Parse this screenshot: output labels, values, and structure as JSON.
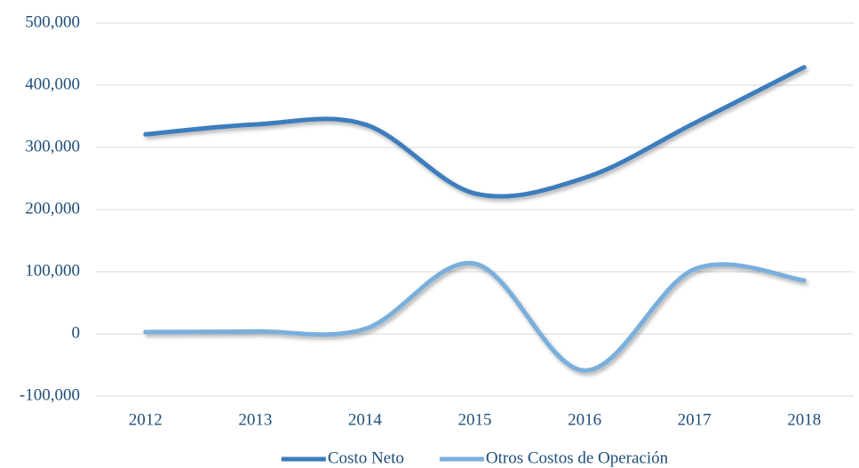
{
  "chart_data": {
    "type": "line",
    "categories": [
      "2012",
      "2013",
      "2014",
      "2015",
      "2016",
      "2017",
      "2018"
    ],
    "series": [
      {
        "name": "Costo Neto",
        "color": "#3c7dbd",
        "values": [
          321000,
          337000,
          337000,
          226000,
          251000,
          339000,
          429000
        ]
      },
      {
        "name": "Otros Costos de Operación",
        "color": "#7aafdc",
        "values": [
          3000,
          4000,
          8000,
          113000,
          -59000,
          104000,
          86000
        ]
      }
    ],
    "ylim": [
      -100000,
      500000
    ],
    "yticks": [
      {
        "value": -100000,
        "label": "-100,000"
      },
      0,
      {
        "value": 100000,
        "label": "100,000"
      },
      {
        "value": 200000,
        "label": "200,000"
      },
      {
        "value": 300000,
        "label": "300,000"
      },
      {
        "value": 400000,
        "label": "400,000"
      },
      {
        "value": 500000,
        "label": "500,000"
      }
    ],
    "grid": true,
    "smooth": true,
    "legend": "bottom"
  }
}
